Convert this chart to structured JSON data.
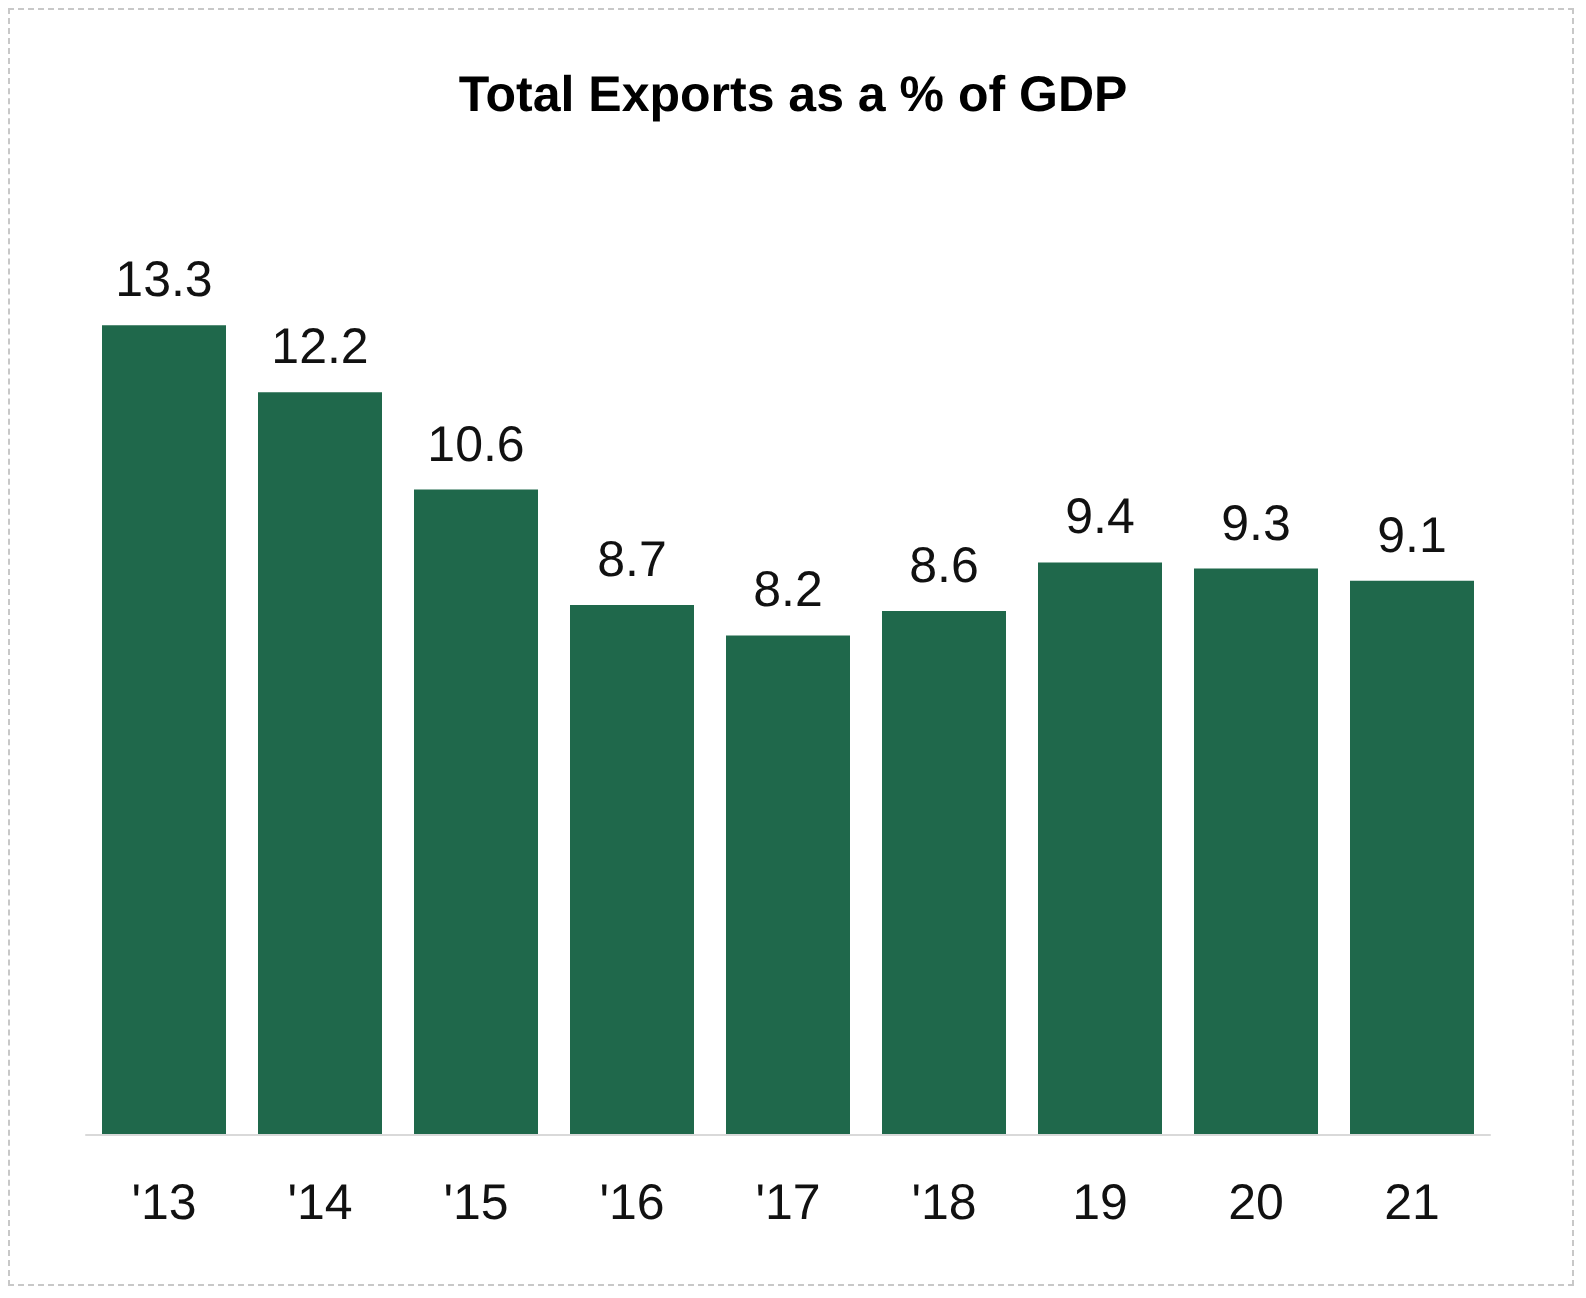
{
  "chart_data": {
    "type": "bar",
    "title": "Total Exports as a % of GDP",
    "categories": [
      "'13",
      "'14",
      "'15",
      "'16",
      "'17",
      "'18",
      "19",
      "20",
      "21"
    ],
    "values": [
      13.3,
      12.2,
      10.6,
      8.7,
      8.2,
      8.6,
      9.4,
      9.3,
      9.1
    ],
    "color": "#1f684b",
    "data_labels": true
  }
}
